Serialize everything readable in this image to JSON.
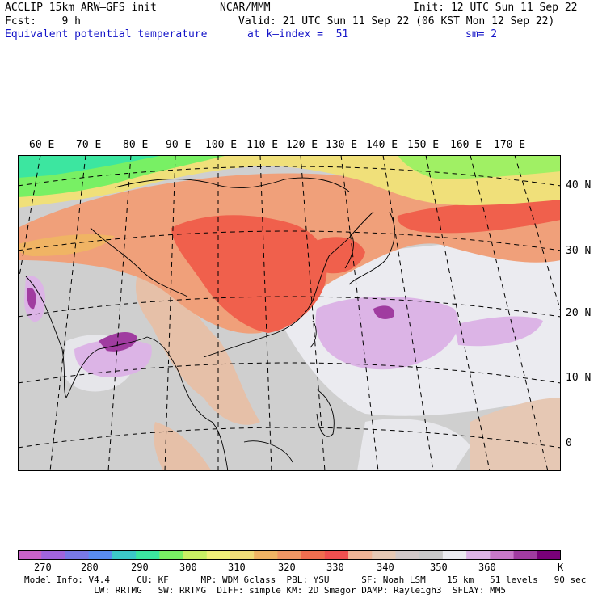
{
  "header": {
    "model_line": "ACCLIP 15km ARW–GFS init",
    "center": "NCAR/MMM",
    "init": "Init: 12 UTC Sun 11 Sep 22",
    "fcst": "Fcst:    9 h",
    "valid": "Valid: 21 UTC Sun 11 Sep 22 (06 KST Mon 12 Sep 22)",
    "field": "Equivalent potential temperature",
    "level": "at k–index =  51",
    "smoothing": "sm= 2"
  },
  "map": {
    "lon_labels": [
      "60 E",
      "70 E",
      "80 E",
      "90 E",
      "100 E",
      "110 E",
      "120 E",
      "130 E",
      "140 E",
      "150 E",
      "160 E",
      "170 E"
    ],
    "lat_labels": [
      "40 N",
      "30 N",
      "20 N",
      "10 N",
      "0"
    ]
  },
  "colorbar": {
    "unit": "K",
    "labels": [
      "270",
      "280",
      "290",
      "300",
      "310",
      "320",
      "330",
      "340",
      "350",
      "360"
    ],
    "colors": [
      "#c862c8",
      "#a064dc",
      "#7878e6",
      "#5a8cf0",
      "#3cc8c8",
      "#3ce6a0",
      "#78f064",
      "#c8f064",
      "#f0f078",
      "#f0dc78",
      "#f0b464",
      "#f09664",
      "#f06e50",
      "#f05050",
      "#f0b496",
      "#e6c8b4",
      "#d2c8c8",
      "#c8c8c8",
      "#ebebf0",
      "#dcb4e6",
      "#c878c8",
      "#a03ca0",
      "#780078"
    ]
  },
  "footer": {
    "line1": "Model Info: V4.4     CU: KF      MP: WDM 6class  PBL: YSU      SF: Noah LSM    15 km   51 levels   90 sec",
    "line2": "             LW: RRTMG   SW: RRTMG  DIFF: simple KM: 2D Smagor DAMP: Rayleigh3  SFLAY: MM5"
  }
}
